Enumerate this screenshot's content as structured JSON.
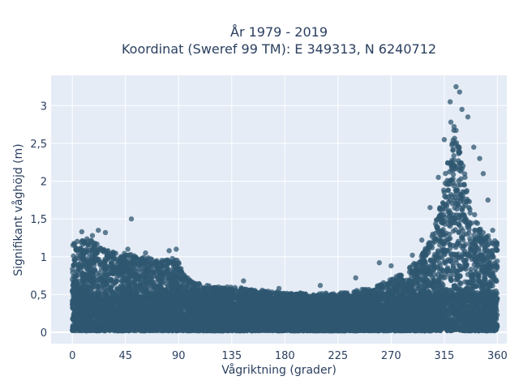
{
  "chart_data": {
    "type": "scatter",
    "title_line1": "År 1979 - 2019",
    "title_line2": "Koordinat (Sweref 99 TM): E 349313, N 6240712",
    "xlabel": "Vågriktning (grader)",
    "ylabel": "Signifikant våghöjd (m)",
    "xlim": [
      -18,
      368
    ],
    "ylim": [
      -0.15,
      3.4
    ],
    "x_ticks": [
      0,
      45,
      90,
      135,
      180,
      225,
      270,
      315,
      360
    ],
    "x_tick_labels": [
      "0",
      "45",
      "90",
      "135",
      "180",
      "225",
      "270",
      "315",
      "360"
    ],
    "y_ticks": [
      0,
      0.5,
      1,
      1.5,
      2,
      2.5,
      3
    ],
    "y_tick_labels": [
      "0",
      "0,5",
      "1",
      "1,5",
      "2",
      "2,5",
      "3"
    ],
    "grid": true,
    "legend": "none",
    "colors": {
      "marker": "#2f5770",
      "plot_bg": "#e5ecf6",
      "grid": "#ffffff",
      "text": "#2a3f5f"
    },
    "envelope": {
      "description_x_deg": [
        0,
        10,
        20,
        30,
        45,
        60,
        75,
        88,
        95,
        105,
        120,
        135,
        150,
        165,
        180,
        195,
        210,
        225,
        240,
        255,
        270,
        285,
        295,
        305,
        312,
        318,
        322,
        326,
        330,
        335,
        340,
        345,
        350,
        355,
        360
      ],
      "upper_hs_m": [
        1.2,
        1.25,
        1.2,
        1.1,
        1.05,
        1.0,
        0.95,
        1.0,
        0.75,
        0.65,
        0.6,
        0.6,
        0.58,
        0.55,
        0.52,
        0.5,
        0.5,
        0.52,
        0.55,
        0.6,
        0.7,
        0.85,
        1.0,
        1.3,
        1.7,
        2.4,
        3.0,
        2.6,
        2.3,
        1.9,
        1.6,
        1.4,
        1.3,
        1.25,
        1.2
      ]
    },
    "outliers": [
      {
        "x": 325,
        "y": 3.25
      },
      {
        "x": 328,
        "y": 3.18
      },
      {
        "x": 320,
        "y": 3.05
      },
      {
        "x": 330,
        "y": 2.95
      },
      {
        "x": 335,
        "y": 2.85
      },
      {
        "x": 315,
        "y": 2.55
      },
      {
        "x": 340,
        "y": 2.45
      },
      {
        "x": 345,
        "y": 2.3
      },
      {
        "x": 348,
        "y": 2.1
      },
      {
        "x": 310,
        "y": 2.05
      },
      {
        "x": 303,
        "y": 1.65
      },
      {
        "x": 352,
        "y": 1.75
      },
      {
        "x": 50,
        "y": 1.5
      },
      {
        "x": 22,
        "y": 1.35
      },
      {
        "x": 28,
        "y": 1.32
      },
      {
        "x": 8,
        "y": 1.33
      },
      {
        "x": 17,
        "y": 1.28
      },
      {
        "x": 47,
        "y": 1.1
      },
      {
        "x": 62,
        "y": 1.05
      },
      {
        "x": 88,
        "y": 1.1
      },
      {
        "x": 82,
        "y": 1.08
      },
      {
        "x": 210,
        "y": 0.62
      },
      {
        "x": 145,
        "y": 0.68
      },
      {
        "x": 260,
        "y": 0.92
      },
      {
        "x": 288,
        "y": 1.02
      },
      {
        "x": 296,
        "y": 1.22
      },
      {
        "x": 270,
        "y": 0.88
      },
      {
        "x": 356,
        "y": 1.35
      },
      {
        "x": 240,
        "y": 0.72
      },
      {
        "x": 175,
        "y": 0.58
      }
    ]
  }
}
